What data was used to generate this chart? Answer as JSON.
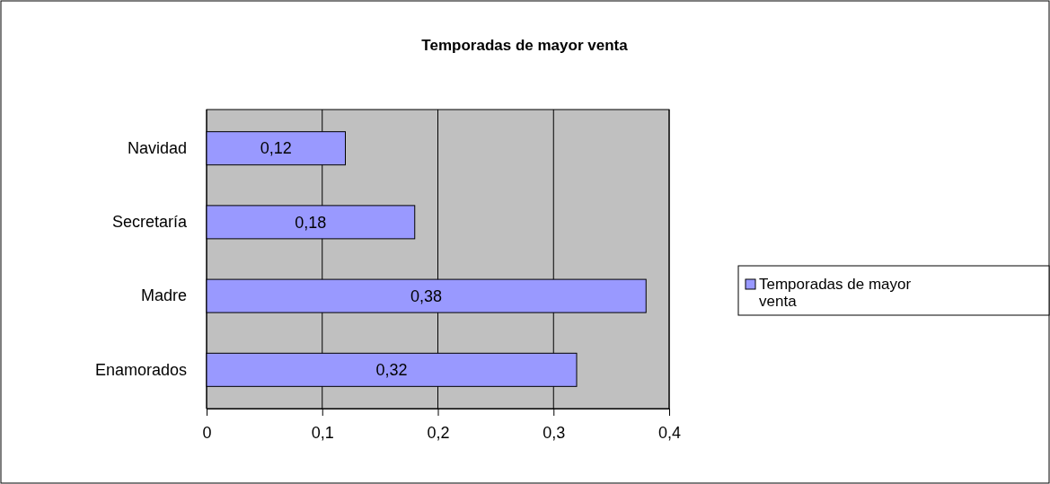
{
  "chart_data": {
    "type": "bar",
    "orientation": "horizontal",
    "title": "Temporadas de mayor venta",
    "categories": [
      "Navidad",
      "Secretaría",
      "Madre",
      "Enamorados"
    ],
    "series": [
      {
        "name": "Temporadas de mayor venta",
        "color": "#9999ff",
        "values": [
          0.12,
          0.18,
          0.38,
          0.32
        ],
        "value_labels": [
          "0,12",
          "0,18",
          "0,38",
          "0,32"
        ]
      }
    ],
    "xlim": [
      0,
      0.4
    ],
    "xticks": [
      0,
      {
        "value": 0.1,
        "label": "0,1"
      },
      {
        "value": 0.2,
        "label": "0,2"
      },
      {
        "value": 0.3,
        "label": "0,3"
      },
      {
        "value": 0.4,
        "label": "0,4"
      }
    ],
    "grid": "x",
    "legend": "right"
  }
}
